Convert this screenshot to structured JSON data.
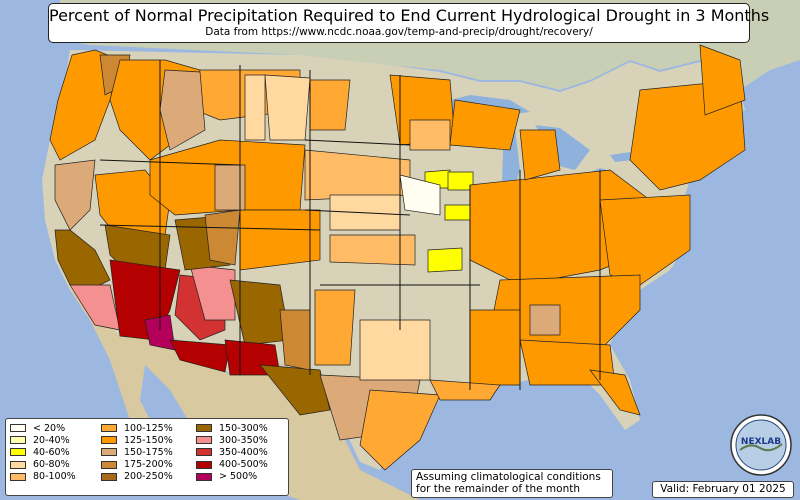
{
  "title": "Percent of Normal Precipitation Required to End Current Hydrological Drought in 3 Months",
  "subtitle": "Data from https://www.ncdc.noaa.gov/temp-and-precip/drought/recovery/",
  "legend": {
    "columns": [
      [
        {
          "label": "< 20%",
          "color": "#fffef0"
        },
        {
          "label": "20-40%",
          "color": "#ffffb0"
        },
        {
          "label": "40-60%",
          "color": "#ffff00"
        },
        {
          "label": "60-80%",
          "color": "#ffd9a0"
        },
        {
          "label": "80-100%",
          "color": "#ffbb66"
        }
      ],
      [
        {
          "label": "100-125%",
          "color": "#ffa833"
        },
        {
          "label": "125-150%",
          "color": "#ff9900"
        },
        {
          "label": "150-175%",
          "color": "#dcaa78"
        },
        {
          "label": "175-200%",
          "color": "#cc8833"
        },
        {
          "label": "200-250%",
          "color": "#a66a1a"
        }
      ],
      [
        {
          "label": "150-300%",
          "color": "#996600"
        },
        {
          "label": "300-350%",
          "color": "#f59090"
        },
        {
          "label": "350-400%",
          "color": "#d23232"
        },
        {
          "label": "400-500%",
          "color": "#b40000"
        },
        {
          "label": "> 500%",
          "color": "#b4005a"
        }
      ]
    ]
  },
  "note": {
    "line1": "Assuming climatological conditions",
    "line2": "for the remainder of the month"
  },
  "valid": "Valid: February 01 2025",
  "logo_text": "NEXLAB",
  "colors": {
    "ocean": "#9db8e0",
    "land_canada": "#c9cfb4",
    "land_usa": "#d8d3b8",
    "land_mexico": "#d9c9a0",
    "lakes": "#8fb2dc"
  }
}
